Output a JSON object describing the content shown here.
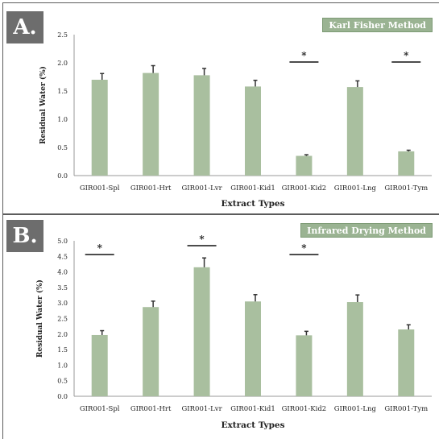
{
  "colors": {
    "bar": "#a9bf9f",
    "error": "#333333",
    "badge": "#6d6d6d",
    "method_box": "#9ab392"
  },
  "chart_data": [
    {
      "type": "bar",
      "panel_label": "A.",
      "method_label": "Karl Fisher Method",
      "categories": [
        "GIR001-Spl",
        "GIR001-Hrt",
        "GIR001-Lvr",
        "GIR001-Kid1",
        "GIR001-Kid2",
        "GIR001-Lng",
        "GIR001-Tym"
      ],
      "values": [
        1.7,
        1.82,
        1.78,
        1.58,
        0.35,
        1.57,
        0.43
      ],
      "errors": [
        0.11,
        0.13,
        0.12,
        0.11,
        0.02,
        0.11,
        0.02
      ],
      "significant": [
        false,
        false,
        false,
        false,
        true,
        false,
        true
      ],
      "significance_marker": "*",
      "xlabel": "Extract Types",
      "ylabel": "Residual Water (%)",
      "ylim": [
        0,
        2.5
      ],
      "yticks": [
        "0.0",
        "0.5",
        "1.0",
        "1.5",
        "2.0",
        "2.5"
      ],
      "grid": false
    },
    {
      "type": "bar",
      "panel_label": "B.",
      "method_label": "Infrared Drying Method",
      "categories": [
        "GIR001-Spl",
        "GIR001-Hrt",
        "GIR001-Lvr",
        "GIR001-Kid1",
        "GIR001-Kid2",
        "GIR001-Lng",
        "GIR001-Tym"
      ],
      "values": [
        1.97,
        2.87,
        4.15,
        3.05,
        1.96,
        3.03,
        2.15
      ],
      "errors": [
        0.14,
        0.19,
        0.3,
        0.22,
        0.13,
        0.23,
        0.15
      ],
      "significant": [
        true,
        false,
        true,
        false,
        true,
        false,
        false
      ],
      "significance_marker": "*",
      "xlabel": "Extract Types",
      "ylabel": "Residual Water (%)",
      "ylim": [
        0,
        5.0
      ],
      "yticks": [
        "0.0",
        "0.5",
        "1.0",
        "1.5",
        "2.0",
        "2.5",
        "3.0",
        "3.5",
        "4.0",
        "4.5",
        "5.0"
      ],
      "grid": false
    }
  ]
}
